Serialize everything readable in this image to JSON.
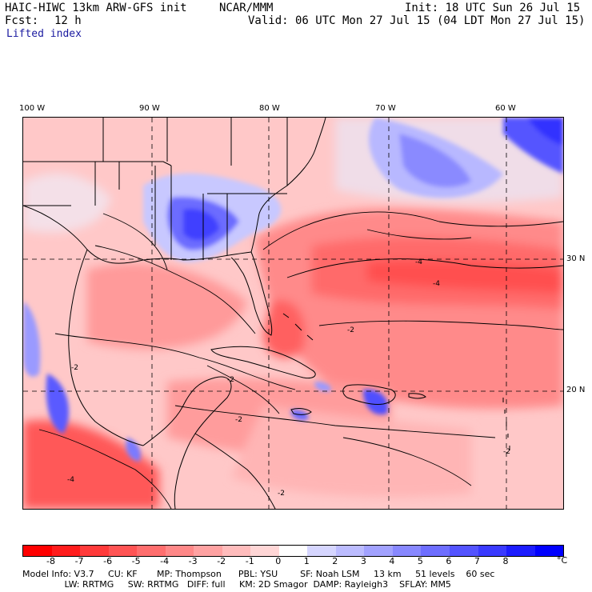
{
  "header": {
    "model": "HAIC-HIWC 13km ARW-GFS init",
    "org": "NCAR/MMM",
    "init": "Init: 18 UTC Sun 26 Jul 15",
    "fcst_label": "Fcst:",
    "fcst_value": "12 h",
    "valid": "Valid: 06 UTC Mon 27 Jul 15 (04 LDT Mon 27 Jul 15)",
    "field": "Lifted index"
  },
  "map": {
    "lon_labels": [
      "100 W",
      "90 W",
      "80 W",
      "70 W",
      "60 W"
    ],
    "lat_labels": [
      "30 N",
      "20 N"
    ],
    "contour_labels": [
      "-2",
      "-4",
      "-2",
      "-2",
      "-4",
      "-4",
      "-2",
      "-2",
      "-2"
    ],
    "colors": {
      "strong_negative": "#ff3a3a",
      "negative": "#ff7b7b",
      "weak_negative": "#ffc2c2",
      "neutral": "#ffe8e8",
      "weak_positive": "#c8c8ff",
      "positive": "#7a7aff",
      "strong_positive": "#2d2dff",
      "coast": "#000000",
      "grid": "#000000"
    }
  },
  "colorbar": {
    "ticks": [
      "-8",
      "-7",
      "-6",
      "-5",
      "-4",
      "-3",
      "-2",
      "-1",
      "0",
      "1",
      "2",
      "3",
      "4",
      "5",
      "6",
      "7",
      "8"
    ],
    "unit": "°C",
    "swatches": [
      "#ff0000",
      "#ff1c1c",
      "#ff3a3a",
      "#ff5454",
      "#ff6e6e",
      "#ff8888",
      "#ffa2a2",
      "#ffbcbc",
      "#ffd6d6",
      "#ffffff",
      "#d6d6ff",
      "#bcbcff",
      "#a2a2ff",
      "#8888ff",
      "#6e6eff",
      "#5454ff",
      "#3a3aff",
      "#1c1cff",
      "#0000ff"
    ]
  },
  "footer": {
    "line1": "Model Info: V3.7     CU: KF       MP: Thompson      PBL: YSU        SF: Noah LSM     13 km     51 levels    60 sec",
    "line2": "               LW: RRTMG     SW: RRTMG   DIFF: full     KM: 2D Smagor  DAMP: Rayleigh3    SFLAY: MM5"
  }
}
